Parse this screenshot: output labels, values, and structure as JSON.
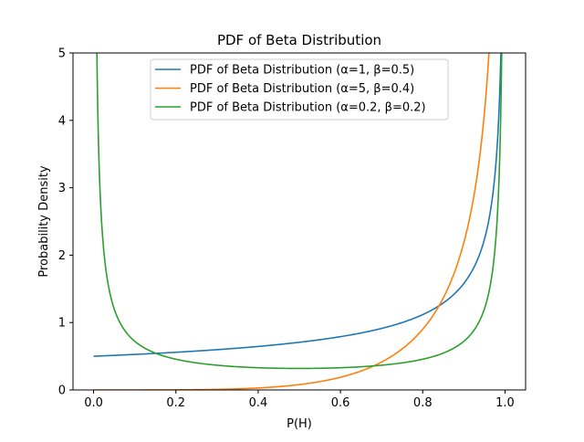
{
  "chart_data": {
    "type": "line",
    "title": "PDF of Beta Distribution",
    "xlabel": "P(H)",
    "ylabel": "Probability Density",
    "xlim": [
      -0.05,
      1.05
    ],
    "ylim": [
      0,
      5
    ],
    "xticks": [
      0.0,
      0.2,
      0.4,
      0.6,
      0.8,
      1.0
    ],
    "xtick_labels": [
      "0.0",
      "0.2",
      "0.4",
      "0.6",
      "0.8",
      "1.0"
    ],
    "yticks": [
      0,
      1,
      2,
      3,
      4,
      5
    ],
    "ytick_labels": [
      "0",
      "1",
      "2",
      "3",
      "4",
      "5"
    ],
    "grid": false,
    "legend_position": "top-center",
    "series": [
      {
        "name": "PDF of Beta Distribution (α=1, β=0.5)",
        "color": "#1f77b4",
        "alpha": 1,
        "beta": 0.5,
        "x": [
          0.0,
          0.05,
          0.1,
          0.15,
          0.2,
          0.25,
          0.3,
          0.35,
          0.4,
          0.45,
          0.5,
          0.55,
          0.6,
          0.65,
          0.7,
          0.75,
          0.8,
          0.85,
          0.9,
          0.92,
          0.94,
          0.96,
          0.97,
          0.98,
          0.985,
          0.99
        ],
        "y": [
          0.5,
          0.513,
          0.527,
          0.542,
          0.559,
          0.577,
          0.598,
          0.62,
          0.645,
          0.674,
          0.707,
          0.745,
          0.791,
          0.845,
          0.913,
          1.0,
          1.118,
          1.291,
          1.581,
          1.768,
          2.041,
          2.5,
          2.887,
          3.536,
          4.082,
          5.0
        ]
      },
      {
        "name": "PDF of Beta Distribution (α=5, β=0.4)",
        "color": "#ff7f0e",
        "alpha": 5,
        "beta": 0.4,
        "x": [
          0.0,
          0.1,
          0.2,
          0.3,
          0.4,
          0.45,
          0.5,
          0.55,
          0.6,
          0.65,
          0.7,
          0.75,
          0.8,
          0.85,
          0.88,
          0.9,
          0.92,
          0.94,
          0.95,
          0.96,
          0.97
        ],
        "y": [
          0.0,
          0.0,
          0.005,
          0.025,
          0.081,
          0.13,
          0.199,
          0.292,
          0.415,
          0.575,
          0.782,
          1.051,
          1.406,
          1.887,
          2.279,
          2.609,
          3.036,
          3.633,
          4.046,
          4.595,
          5.0
        ]
      },
      {
        "name": "PDF of Beta Distribution (α=0.2, β=0.2)",
        "color": "#2ca02c",
        "alpha": 0.2,
        "beta": 0.2,
        "x": [
          0.003,
          0.005,
          0.01,
          0.02,
          0.03,
          0.05,
          0.07,
          0.1,
          0.15,
          0.2,
          0.3,
          0.4,
          0.5,
          0.6,
          0.7,
          0.8,
          0.85,
          0.9,
          0.93,
          0.95,
          0.97,
          0.98,
          0.99,
          0.995,
          0.997
        ],
        "y": [
          5.0,
          4.1,
          2.94,
          2.093,
          1.65,
          1.225,
          0.99,
          0.8,
          0.62,
          0.52,
          0.415,
          0.355,
          0.335,
          0.355,
          0.415,
          0.52,
          0.62,
          0.8,
          0.99,
          1.225,
          1.65,
          2.093,
          2.94,
          4.1,
          5.0
        ]
      }
    ]
  }
}
